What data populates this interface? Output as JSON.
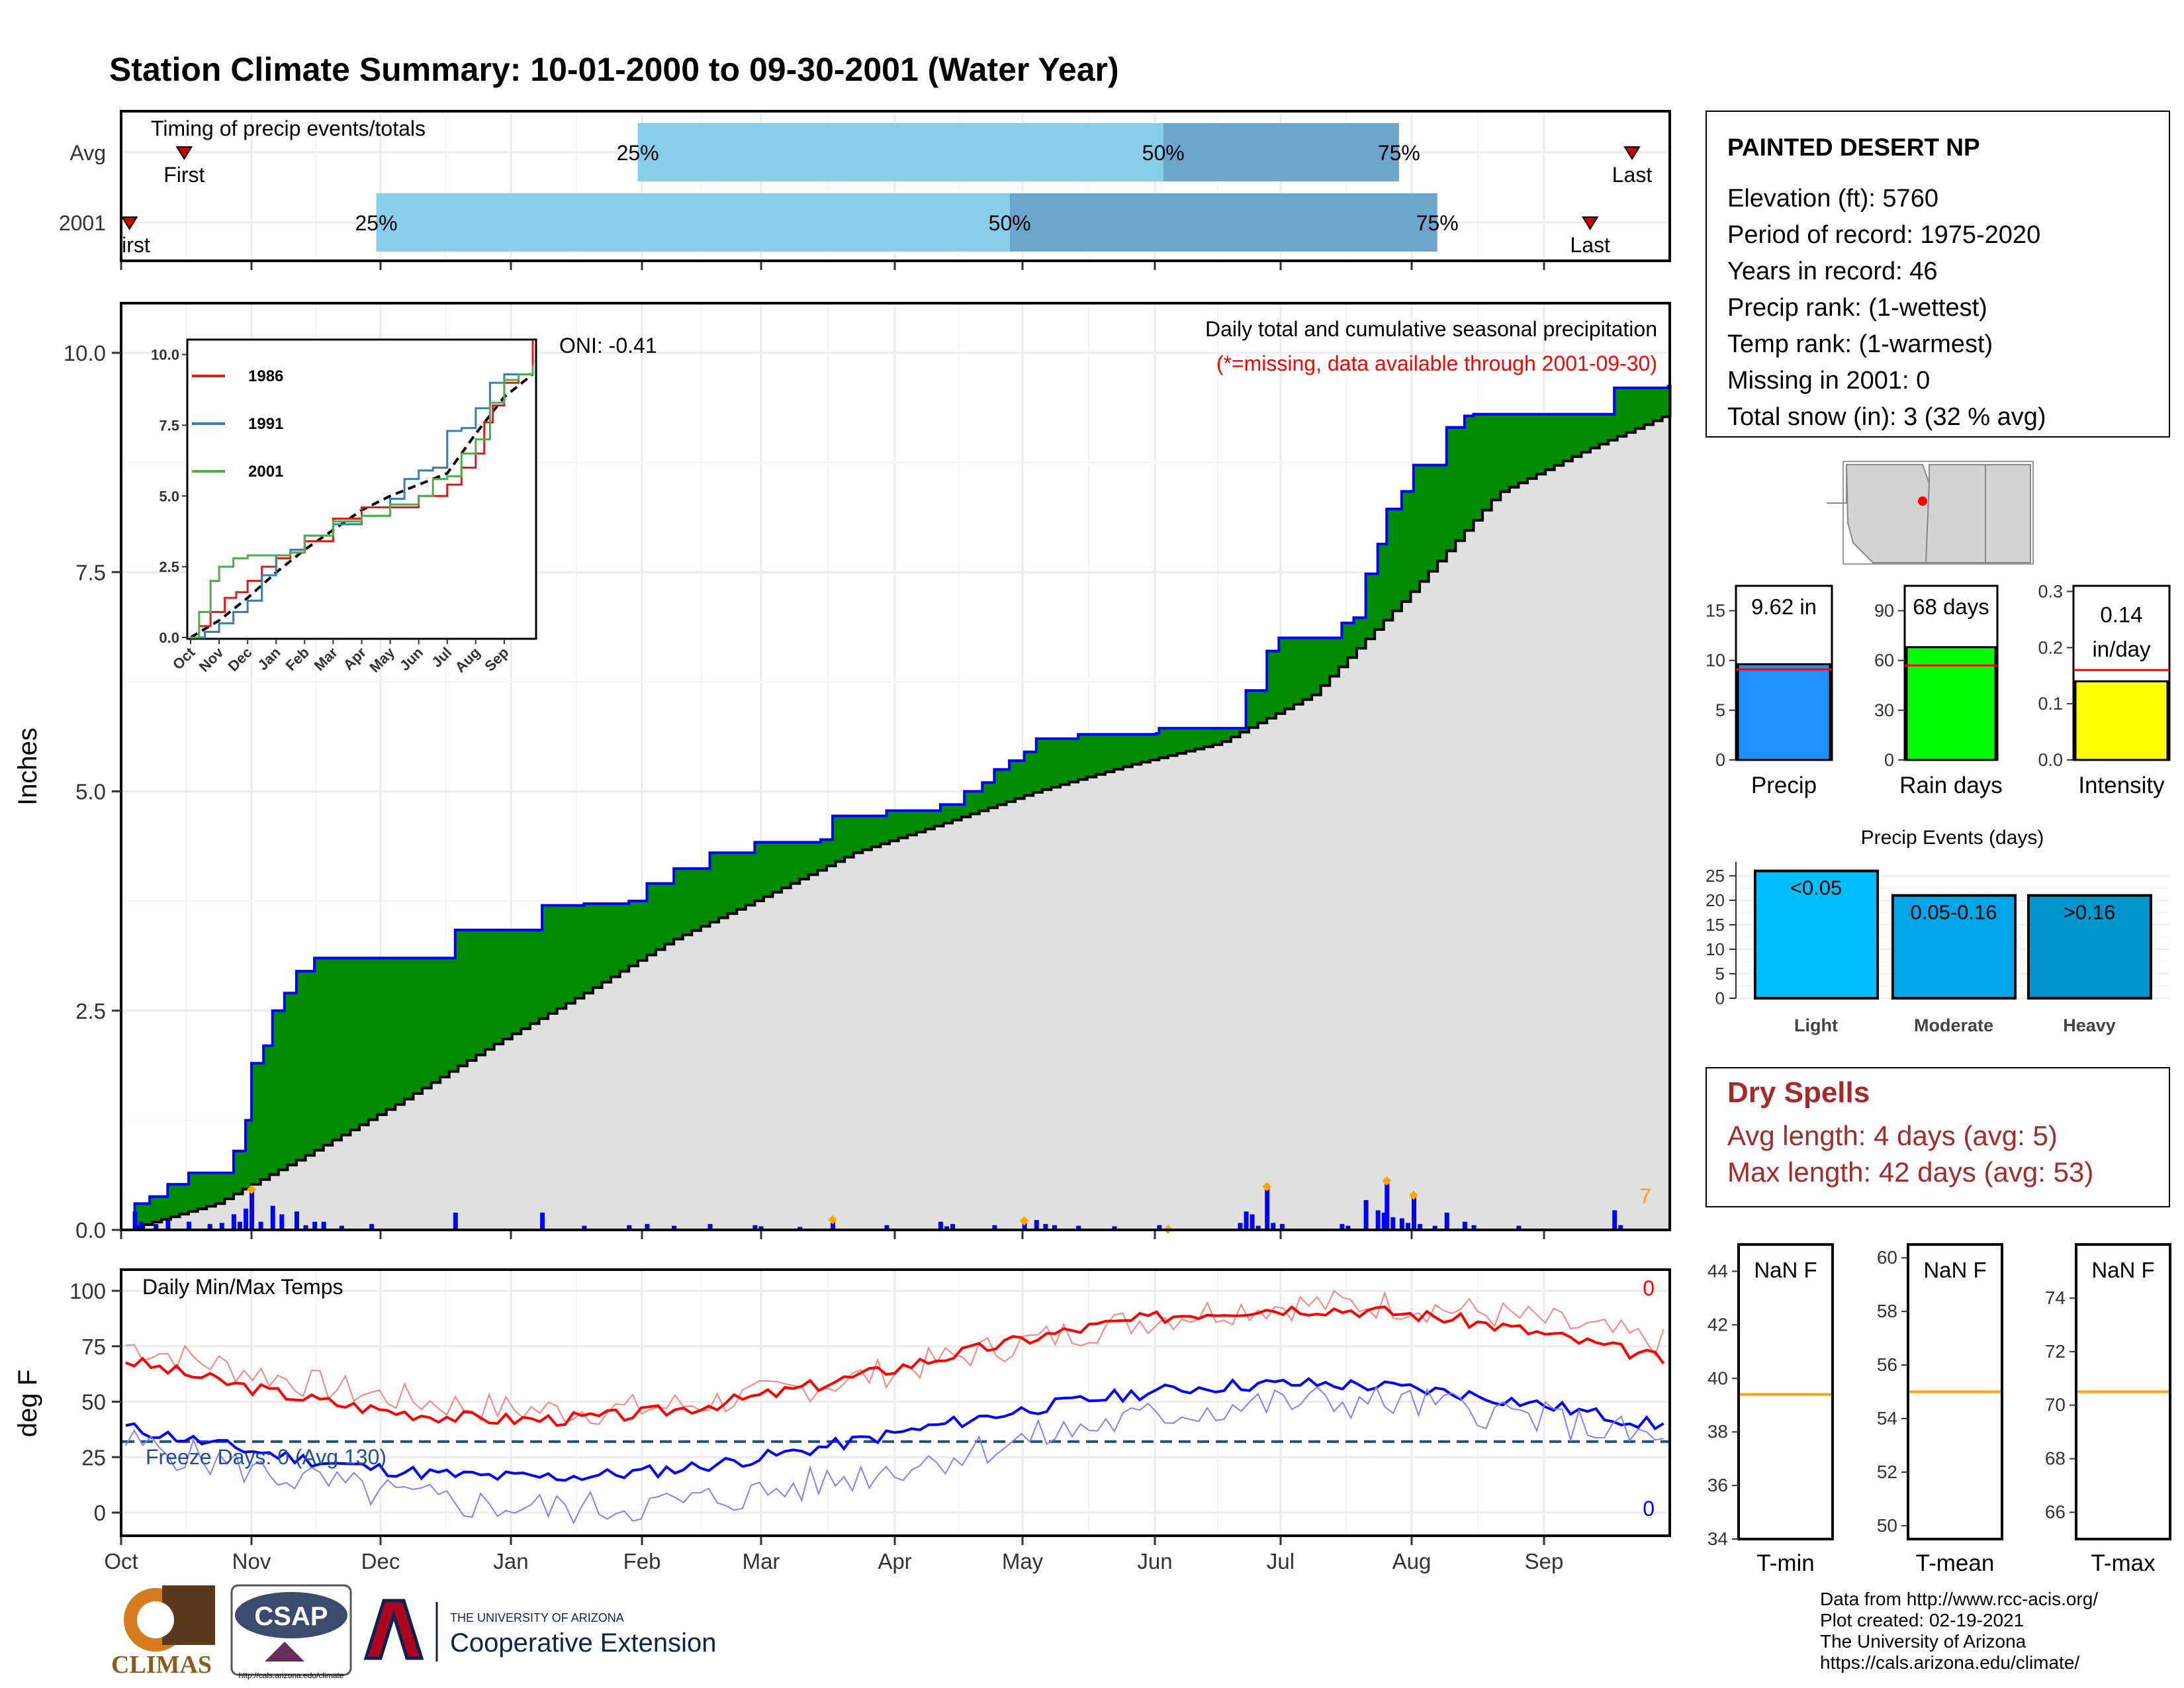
{
  "title": "Station Climate Summary: 10-01-2000 to 09-30-2001 (Water Year)",
  "colors": {
    "title": "#8B2500",
    "light_blue": "#87CEEB",
    "mid_blue": "#6CA6CD",
    "green": "#008B00",
    "gray_fill": "#E0E0E0",
    "blue": "#0000FF",
    "red": "#FF0000",
    "orange": "#FFA500",
    "dry_spells": "#A52A2A"
  },
  "timing": {
    "label": "Timing of precip events/totals",
    "rows": [
      {
        "name": "Avg",
        "first_label": "First",
        "last_label": "Last",
        "p25": "25%",
        "p50": "50%",
        "p75": "75%",
        "first_date": "2000-10-16",
        "p25_date": "2001-01-31",
        "p50_date": "2001-06-03",
        "p75_date": "2001-07-29",
        "last_date": "2001-09-22"
      },
      {
        "name": "2001",
        "first_label": "First",
        "last_label": "Last",
        "p25": "25%",
        "p50": "50%",
        "p75": "75%",
        "first_date": "2000-10-03",
        "p25_date": "2000-11-30",
        "p50_date": "2001-04-28",
        "p75_date": "2001-08-07",
        "last_date": "2001-09-12"
      }
    ]
  },
  "station": {
    "name": "PAINTED DESERT NP",
    "lines": [
      "Elevation (ft): 5760",
      "Period of record: 1975-2020",
      "Years in record: 46",
      "Precip rank:  (1-wettest)",
      "Temp rank:  (1-warmest)",
      "Missing in 2001: 0",
      "Total snow (in): 3 (32 % avg)"
    ]
  },
  "month_labels": [
    "Oct",
    "Nov",
    "Dec",
    "Jan",
    "Feb",
    "Mar",
    "Apr",
    "May",
    "Jun",
    "Jul",
    "Aug",
    "Sep"
  ],
  "precip_panel": {
    "ylabel": "Inches",
    "yticks": [
      "0.0",
      "2.5",
      "5.0",
      "7.5",
      "10.0"
    ],
    "ylim": [
      0,
      10.5
    ],
    "subtitle": "Daily total and cumulative seasonal precipitation",
    "missing_note": "(*=missing, data available through 2001-09-30)",
    "oni": "ONI: -0.41",
    "corner_count": "7"
  },
  "inset": {
    "yticks": [
      "0.0",
      "2.5",
      "5.0",
      "7.5",
      "10.0"
    ],
    "xticks": [
      "Oct",
      "Nov",
      "Dec",
      "Jan",
      "Feb",
      "Mar",
      "Apr",
      "May",
      "Jun",
      "Jul",
      "Aug",
      "Sep"
    ],
    "legend": [
      {
        "name": "1986",
        "color": "#E31A1C"
      },
      {
        "name": "1991",
        "color": "#377EB8"
      },
      {
        "name": "2001",
        "color": "#4DAF4A"
      }
    ]
  },
  "temp_panel": {
    "ylabel": "deg F",
    "title": "Daily Min/Max Temps",
    "yticks": [
      "0",
      "25",
      "50",
      "75",
      "100"
    ],
    "freeze": "Freeze Days: 0 (Avg 130)",
    "max_count": "0",
    "min_count": "0"
  },
  "bars_top": [
    {
      "value_label": "9.62 in",
      "name": "Precip",
      "yticks": [
        "0",
        "5",
        "10",
        "15"
      ],
      "color": "#1E90FF",
      "value": 9.62,
      "avg": 9.1,
      "ymax": 17.5
    },
    {
      "value_label": "68 days",
      "name": "Rain days",
      "yticks": [
        "0",
        "30",
        "60",
        "90"
      ],
      "color": "#00FF00",
      "value": 68,
      "avg": 57,
      "ymax": 105
    },
    {
      "value_label": "0.14\nin/day",
      "name": "Intensity",
      "yticks": [
        "0.0",
        "0.1",
        "0.2",
        "0.3"
      ],
      "color": "#FFFF00",
      "value": 0.14,
      "avg": 0.16,
      "ymax": 0.31
    }
  ],
  "events": {
    "title": "Precip Events (days)",
    "yticks": [
      "0",
      "5",
      "10",
      "15",
      "20",
      "25"
    ],
    "bars": [
      {
        "label": "<0.05",
        "name": "Light",
        "value": 26,
        "color": "#00BFFF"
      },
      {
        "label": "0.05-0.16",
        "name": "Moderate",
        "value": 21,
        "color": "#00A5E6"
      },
      {
        "label": ">0.16",
        "name": "Heavy",
        "value": 21,
        "color": "#0096CC"
      }
    ]
  },
  "dry_spells": {
    "title": "Dry Spells",
    "avg": "Avg length: 4 days (avg: 5)",
    "max": "Max length: 42 days (avg: 53)"
  },
  "temp_boxes": [
    {
      "value": "NaN F",
      "name": "T-min",
      "yticks": [
        "34",
        "36",
        "38",
        "40",
        "42",
        "44"
      ],
      "ymin": 34,
      "ymax": 45,
      "avg": 39.4
    },
    {
      "value": "NaN F",
      "name": "T-mean",
      "yticks": [
        "50",
        "52",
        "54",
        "56",
        "58",
        "60"
      ],
      "ymin": 49.5,
      "ymax": 60.5,
      "avg": 55
    },
    {
      "value": "NaN F",
      "name": "T-max",
      "yticks": [
        "66",
        "68",
        "70",
        "72",
        "74"
      ],
      "ymin": 65,
      "ymax": 76,
      "avg": 70.5
    }
  ],
  "footer": [
    "Data from http://www.rcc-acis.org/",
    "Plot created: 02-19-2021",
    "The University of Arizona",
    "https://cals.arizona.edu/climate/"
  ],
  "logos": {
    "climas": "CLIMAS",
    "csap": "CSAP",
    "csap_url": "http://cals.arizona.edu/climate",
    "ua_line1": "THE UNIVERSITY OF ARIZONA",
    "ua_line2": "Cooperative Extension"
  },
  "chart_data": {
    "type": "area",
    "title": "Daily total and cumulative seasonal precipitation",
    "ylabel": "Inches",
    "ylim": [
      0,
      10.5
    ],
    "cumulative_2001": [
      [
        0,
        0
      ],
      [
        3,
        0.3
      ],
      [
        8,
        0.38
      ],
      [
        14,
        0.52
      ],
      [
        21,
        0.65
      ],
      [
        36,
        0.9
      ],
      [
        40,
        1.25
      ],
      [
        42,
        1.9
      ],
      [
        46,
        2.1
      ],
      [
        49,
        2.5
      ],
      [
        53,
        2.7
      ],
      [
        57,
        2.95
      ],
      [
        63,
        3.1
      ],
      [
        82,
        3.1
      ],
      [
        110,
        3.42
      ],
      [
        131,
        3.42
      ],
      [
        139,
        3.7
      ],
      [
        153,
        3.72
      ],
      [
        168,
        3.75
      ],
      [
        174,
        3.95
      ],
      [
        183,
        4.12
      ],
      [
        195,
        4.3
      ],
      [
        210,
        4.42
      ],
      [
        232,
        4.45
      ],
      [
        236,
        4.72
      ],
      [
        254,
        4.78
      ],
      [
        272,
        4.85
      ],
      [
        280,
        5.0
      ],
      [
        286,
        5.1
      ],
      [
        290,
        5.25
      ],
      [
        295,
        5.35
      ],
      [
        300,
        5.45
      ],
      [
        304,
        5.6
      ],
      [
        318,
        5.65
      ],
      [
        344,
        5.66
      ],
      [
        345,
        5.72
      ],
      [
        365,
        5.72
      ],
      [
        374,
        6.15
      ],
      [
        381,
        6.6
      ],
      [
        385,
        6.75
      ],
      [
        403,
        6.75
      ],
      [
        406,
        6.92
      ],
      [
        410,
        6.98
      ],
      [
        414,
        7.48
      ],
      [
        418,
        7.82
      ],
      [
        421,
        8.22
      ],
      [
        426,
        8.42
      ],
      [
        430,
        8.72
      ],
      [
        441,
        9.15
      ],
      [
        447,
        9.28
      ],
      [
        450,
        9.3
      ],
      [
        465,
        9.3
      ],
      [
        480,
        9.3
      ],
      [
        490,
        9.3
      ],
      [
        497,
        9.6
      ],
      [
        515,
        9.62
      ]
    ],
    "cumulative_avg": [
      [
        0,
        0
      ],
      [
        30,
        0.3
      ],
      [
        60,
        0.85
      ],
      [
        91,
        1.45
      ],
      [
        122,
        2.1
      ],
      [
        153,
        2.7
      ],
      [
        182,
        3.3
      ],
      [
        213,
        3.8
      ],
      [
        243,
        4.3
      ],
      [
        274,
        4.65
      ],
      [
        304,
        5.0
      ],
      [
        335,
        5.3
      ],
      [
        365,
        5.55
      ],
      [
        396,
        6.1
      ],
      [
        427,
        7.2
      ],
      [
        458,
        8.4
      ],
      [
        488,
        8.9
      ],
      [
        515,
        9.3
      ]
    ],
    "daily_2001": [
      {
        "day": 3,
        "value": 0.3
      },
      {
        "day": 5,
        "value": 0.12
      },
      {
        "day": 10,
        "value": 0.08
      },
      {
        "day": 14,
        "value": 0.14
      },
      {
        "day": 21,
        "value": 0.12
      },
      {
        "day": 28,
        "value": 0.08
      },
      {
        "day": 32,
        "value": 0.1
      },
      {
        "day": 36,
        "value": 0.25
      },
      {
        "day": 38,
        "value": 0.12
      },
      {
        "day": 40,
        "value": 0.35
      },
      {
        "day": 42,
        "value": 0.65
      },
      {
        "day": 45,
        "value": 0.12
      },
      {
        "day": 49,
        "value": 0.4
      },
      {
        "day": 52,
        "value": 0.25
      },
      {
        "day": 57,
        "value": 0.3
      },
      {
        "day": 60,
        "value": 0.06
      },
      {
        "day": 63,
        "value": 0.12
      },
      {
        "day": 66,
        "value": 0.12
      },
      {
        "day": 72,
        "value": 0.05
      },
      {
        "day": 82,
        "value": 0.08
      },
      {
        "day": 110,
        "value": 0.28
      },
      {
        "day": 139,
        "value": 0.28
      },
      {
        "day": 153,
        "value": 0.05
      },
      {
        "day": 168,
        "value": 0.06
      },
      {
        "day": 174,
        "value": 0.08
      },
      {
        "day": 183,
        "value": 0.05
      },
      {
        "day": 195,
        "value": 0.08
      },
      {
        "day": 210,
        "value": 0.06
      },
      {
        "day": 212,
        "value": 0.04
      },
      {
        "day": 225,
        "value": 0.03
      },
      {
        "day": 236,
        "value": 0.12
      },
      {
        "day": 254,
        "value": 0.06
      },
      {
        "day": 272,
        "value": 0.12
      },
      {
        "day": 274,
        "value": 0.04
      },
      {
        "day": 276,
        "value": 0.08
      },
      {
        "day": 290,
        "value": 0.06
      },
      {
        "day": 300,
        "value": 0.1
      },
      {
        "day": 304,
        "value": 0.15
      },
      {
        "day": 307,
        "value": 0.08
      },
      {
        "day": 310,
        "value": 0.06
      },
      {
        "day": 318,
        "value": 0.05
      },
      {
        "day": 330,
        "value": 0.04
      },
      {
        "day": 345,
        "value": 0.06
      },
      {
        "day": 372,
        "value": 0.1
      },
      {
        "day": 374,
        "value": 0.3
      },
      {
        "day": 376,
        "value": 0.25
      },
      {
        "day": 378,
        "value": 0.05
      },
      {
        "day": 381,
        "value": 0.7
      },
      {
        "day": 383,
        "value": 0.1
      },
      {
        "day": 386,
        "value": 0.08
      },
      {
        "day": 406,
        "value": 0.08
      },
      {
        "day": 408,
        "value": 0.05
      },
      {
        "day": 414,
        "value": 0.5
      },
      {
        "day": 418,
        "value": 0.32
      },
      {
        "day": 420,
        "value": 0.28
      },
      {
        "day": 421,
        "value": 0.8
      },
      {
        "day": 423,
        "value": 0.2
      },
      {
        "day": 426,
        "value": 0.18
      },
      {
        "day": 428,
        "value": 0.1
      },
      {
        "day": 430,
        "value": 0.55
      },
      {
        "day": 432,
        "value": 0.08
      },
      {
        "day": 437,
        "value": 0.05
      },
      {
        "day": 441,
        "value": 0.28
      },
      {
        "day": 447,
        "value": 0.12
      },
      {
        "day": 450,
        "value": 0.06
      },
      {
        "day": 465,
        "value": 0.05
      },
      {
        "day": 497,
        "value": 0.32
      },
      {
        "day": 499,
        "value": 0.06
      }
    ],
    "snow_days": [
      42,
      139,
      236,
      300,
      374,
      381,
      421,
      430
    ]
  }
}
